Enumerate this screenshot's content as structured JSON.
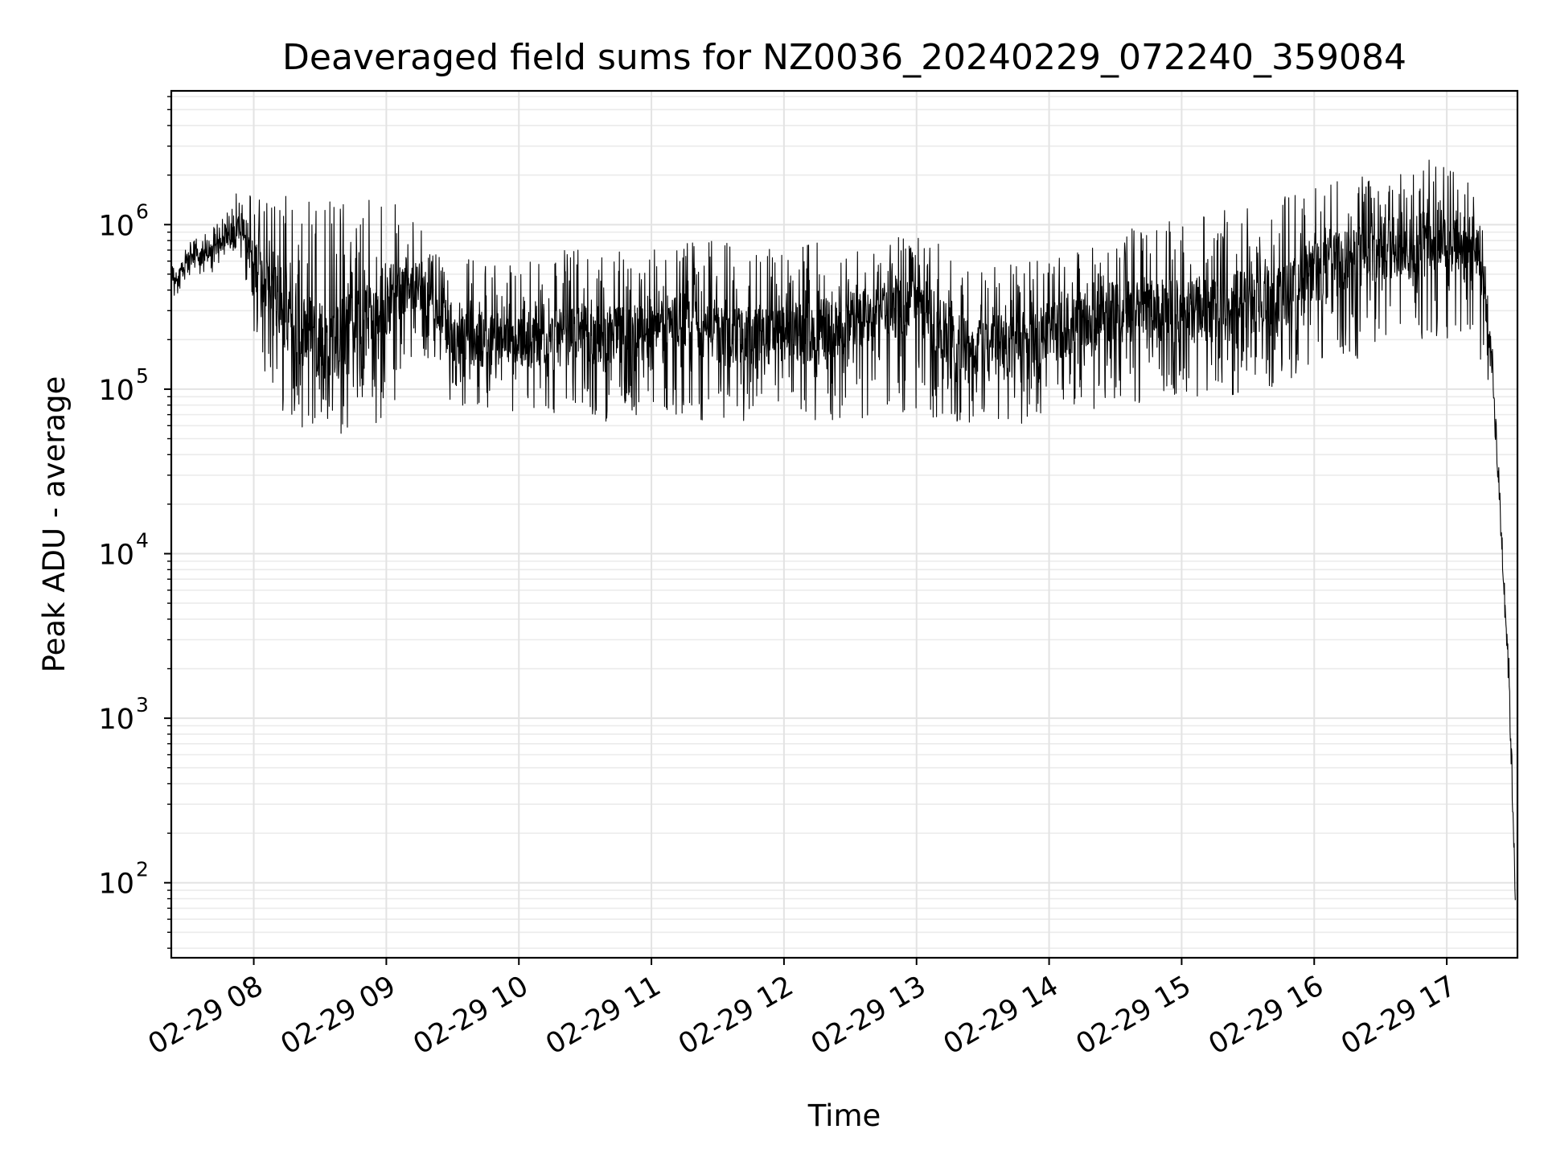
{
  "chart_data": {
    "type": "line",
    "title": "Deaveraged field sums for NZ0036_20240229_072240_359084",
    "xlabel": "Time",
    "ylabel": "Peak ADU - average",
    "yscale": "log",
    "xlim": [
      "2024-02-29 07:22:40",
      "2024-02-29 17:32:00"
    ],
    "ylim": [
      35,
      6500000
    ],
    "grid": true,
    "line_color": "#000000",
    "x_ticks": [
      {
        "time": "2024-02-29 08:00",
        "label": "02-29 08"
      },
      {
        "time": "2024-02-29 09:00",
        "label": "02-29 09"
      },
      {
        "time": "2024-02-29 10:00",
        "label": "02-29 10"
      },
      {
        "time": "2024-02-29 11:00",
        "label": "02-29 11"
      },
      {
        "time": "2024-02-29 12:00",
        "label": "02-29 12"
      },
      {
        "time": "2024-02-29 13:00",
        "label": "02-29 13"
      },
      {
        "time": "2024-02-29 14:00",
        "label": "02-29 14"
      },
      {
        "time": "2024-02-29 15:00",
        "label": "02-29 15"
      },
      {
        "time": "2024-02-29 16:00",
        "label": "02-29 16"
      },
      {
        "time": "2024-02-29 17:00",
        "label": "02-29 17"
      }
    ],
    "y_ticks": [
      {
        "value": 100,
        "base": "10",
        "exp": "2"
      },
      {
        "value": 1000,
        "base": "10",
        "exp": "3"
      },
      {
        "value": 10000,
        "base": "10",
        "exp": "4"
      },
      {
        "value": 100000,
        "base": "10",
        "exp": "5"
      },
      {
        "value": 1000000,
        "base": "10",
        "exp": "6"
      }
    ],
    "series": [
      {
        "x": [
          "2024-02-29 07:23",
          "2024-02-29 07:30",
          "2024-02-29 07:40",
          "2024-02-29 07:50",
          "2024-02-29 07:55",
          "2024-02-29 08:00",
          "2024-02-29 08:10",
          "2024-02-29 08:20",
          "2024-02-29 08:30",
          "2024-02-29 08:40",
          "2024-02-29 08:50",
          "2024-02-29 09:00",
          "2024-02-29 09:10",
          "2024-02-29 09:20",
          "2024-02-29 09:30",
          "2024-02-29 09:45",
          "2024-02-29 10:00",
          "2024-02-29 10:15",
          "2024-02-29 10:30",
          "2024-02-29 10:45",
          "2024-02-29 11:00",
          "2024-02-29 11:15",
          "2024-02-29 11:30",
          "2024-02-29 11:45",
          "2024-02-29 12:00",
          "2024-02-29 12:15",
          "2024-02-29 12:30",
          "2024-02-29 12:45",
          "2024-02-29 13:00",
          "2024-02-29 13:15",
          "2024-02-29 13:30",
          "2024-02-29 13:45",
          "2024-02-29 14:00",
          "2024-02-29 14:15",
          "2024-02-29 14:30",
          "2024-02-29 14:45",
          "2024-02-29 15:00",
          "2024-02-29 15:15",
          "2024-02-29 15:30",
          "2024-02-29 15:45",
          "2024-02-29 16:00",
          "2024-02-29 16:15",
          "2024-02-29 16:30",
          "2024-02-29 16:45",
          "2024-02-29 17:00",
          "2024-02-29 17:10",
          "2024-02-29 17:15",
          "2024-02-29 17:20",
          "2024-02-29 17:24",
          "2024-02-29 17:28",
          "2024-02-29 17:31"
        ],
        "typical": [
          420000,
          600000,
          650000,
          900000,
          1000000,
          600000,
          350000,
          250000,
          200000,
          200000,
          250000,
          350000,
          450000,
          350000,
          200000,
          200000,
          200000,
          200000,
          220000,
          200000,
          250000,
          250000,
          220000,
          200000,
          220000,
          220000,
          250000,
          300000,
          350000,
          200000,
          180000,
          200000,
          220000,
          250000,
          300000,
          300000,
          300000,
          300000,
          350000,
          350000,
          500000,
          600000,
          700000,
          800000,
          800000,
          800000,
          700000,
          200000,
          20000,
          2000,
          100
        ],
        "upper": [
          550000,
          800000,
          900000,
          1300000,
          2000000,
          1500000,
          1600000,
          1600000,
          1500000,
          1500000,
          1500000,
          1500000,
          1200000,
          800000,
          700000,
          600000,
          600000,
          700000,
          700000,
          800000,
          800000,
          800000,
          800000,
          800000,
          700000,
          800000,
          700000,
          800000,
          900000,
          700000,
          600000,
          600000,
          700000,
          700000,
          900000,
          1000000,
          1100000,
          1200000,
          1300000,
          1500000,
          1800000,
          2000000,
          2200000,
          2500000,
          2500000,
          2200000,
          1500000,
          300000,
          40000,
          4000,
          400
        ],
        "lower": [
          350000,
          400000,
          500000,
          600000,
          600000,
          200000,
          80000,
          60000,
          50000,
          50000,
          55000,
          60000,
          150000,
          150000,
          80000,
          70000,
          70000,
          70000,
          70000,
          60000,
          70000,
          70000,
          60000,
          60000,
          70000,
          60000,
          60000,
          70000,
          70000,
          60000,
          60000,
          60000,
          70000,
          70000,
          80000,
          80000,
          90000,
          80000,
          90000,
          100000,
          150000,
          150000,
          150000,
          200000,
          200000,
          200000,
          150000,
          100000,
          10000,
          1000,
          70
        ]
      }
    ]
  }
}
